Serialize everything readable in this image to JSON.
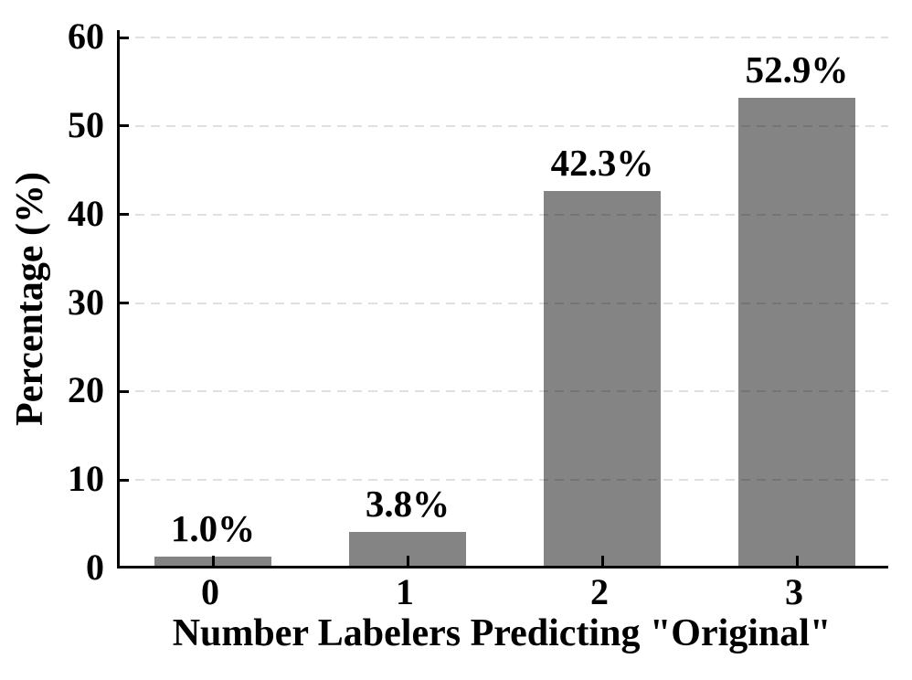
{
  "chart_data": {
    "type": "bar",
    "title": "",
    "categories": [
      "0",
      "1",
      "2",
      "3"
    ],
    "values": [
      1.0,
      3.8,
      42.3,
      52.9
    ],
    "bar_labels": [
      "1.0%",
      "3.8%",
      "42.3%",
      "52.9%"
    ],
    "xlabel": "Number Labelers Predicting \"Original\"",
    "ylabel": "Percentage (%)",
    "yticks": [
      0,
      10,
      20,
      30,
      40,
      50,
      60
    ],
    "ylim": [
      0,
      61
    ],
    "xlabel_quote_style": "straight-double-quotes",
    "bar_color": "#848484",
    "text_color": "#000000",
    "grid": "horizontal-dashed",
    "grid_color_alpha": "rgba(0,0,0,0.12)",
    "legend": "none",
    "spines": [
      "left",
      "bottom"
    ]
  }
}
